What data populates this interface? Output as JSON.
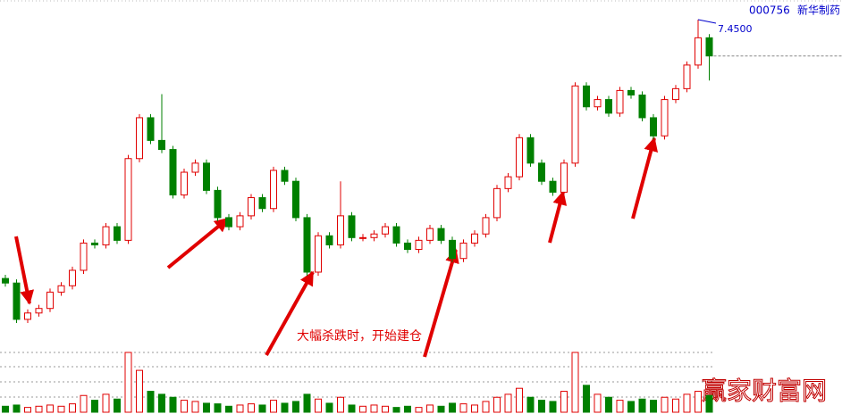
{
  "header": {
    "code": "000756",
    "name": "新华制药"
  },
  "chart_data": {
    "type": "candlestick",
    "open": [
      4.6,
      4.55,
      4.15,
      4.22,
      4.27,
      4.45,
      4.52,
      4.69,
      4.99,
      4.97,
      5.17,
      5.02,
      5.92,
      6.37,
      6.12,
      6.02,
      5.52,
      5.77,
      5.87,
      5.57,
      5.27,
      5.17,
      5.29,
      5.49,
      5.37,
      5.79,
      5.67,
      5.27,
      4.67,
      5.07,
      4.97,
      5.29,
      5.05,
      5.05,
      5.09,
      5.17,
      4.99,
      4.92,
      5.02,
      5.15,
      5.02,
      4.82,
      4.99,
      5.09,
      5.27,
      5.59,
      5.72,
      6.15,
      5.87,
      5.67,
      5.55,
      5.87,
      6.72,
      6.49,
      6.57,
      6.42,
      6.67,
      6.62,
      6.37,
      6.17,
      6.57,
      6.69,
      6.95,
      7.25
    ],
    "high": [
      4.64,
      4.59,
      4.26,
      4.31,
      4.49,
      4.56,
      4.73,
      5.03,
      5.03,
      5.21,
      5.21,
      5.96,
      6.41,
      6.41,
      6.63,
      6.06,
      5.81,
      5.91,
      5.91,
      5.61,
      5.31,
      5.33,
      5.53,
      5.53,
      5.83,
      5.83,
      5.71,
      5.31,
      5.11,
      5.11,
      5.67,
      5.33,
      5.09,
      5.13,
      5.21,
      5.21,
      5.03,
      5.06,
      5.19,
      5.19,
      5.06,
      5.03,
      5.13,
      5.31,
      5.63,
      5.76,
      6.19,
      6.19,
      5.91,
      5.71,
      5.91,
      6.76,
      6.76,
      6.61,
      6.61,
      6.71,
      6.71,
      6.66,
      6.41,
      6.61,
      6.73,
      6.99,
      7.45,
      7.29
    ],
    "low": [
      4.51,
      4.11,
      4.11,
      4.18,
      4.23,
      4.41,
      4.48,
      4.65,
      4.93,
      4.93,
      4.98,
      4.98,
      5.88,
      6.08,
      5.98,
      5.48,
      5.48,
      5.73,
      5.53,
      5.23,
      5.13,
      5.13,
      5.25,
      5.33,
      5.33,
      5.63,
      5.23,
      4.63,
      4.63,
      4.93,
      4.93,
      5.01,
      5.01,
      5.01,
      5.05,
      4.95,
      4.88,
      4.88,
      4.98,
      4.98,
      4.78,
      4.78,
      4.95,
      5.05,
      5.23,
      5.55,
      5.68,
      5.83,
      5.63,
      5.51,
      5.51,
      5.83,
      6.45,
      6.45,
      6.38,
      6.38,
      6.58,
      6.33,
      6.13,
      6.13,
      6.53,
      6.65,
      6.91,
      6.78
    ],
    "close": [
      4.55,
      4.15,
      4.22,
      4.27,
      4.45,
      4.52,
      4.69,
      4.99,
      4.97,
      5.17,
      5.02,
      5.92,
      6.37,
      6.12,
      6.02,
      5.52,
      5.77,
      5.87,
      5.57,
      5.27,
      5.17,
      5.29,
      5.49,
      5.37,
      5.79,
      5.67,
      5.27,
      4.67,
      5.07,
      4.97,
      5.29,
      5.05,
      5.05,
      5.09,
      5.17,
      4.99,
      4.92,
      5.02,
      5.15,
      5.02,
      4.82,
      4.99,
      5.09,
      5.27,
      5.59,
      5.72,
      6.15,
      5.87,
      5.67,
      5.55,
      5.87,
      6.72,
      6.49,
      6.57,
      6.42,
      6.67,
      6.62,
      6.37,
      6.17,
      6.57,
      6.69,
      6.95,
      7.25,
      7.05
    ],
    "volume": [
      10,
      12,
      8,
      10,
      12,
      10,
      14,
      28,
      20,
      30,
      22,
      100,
      70,
      35,
      30,
      25,
      20,
      18,
      15,
      14,
      10,
      12,
      14,
      12,
      20,
      15,
      18,
      30,
      22,
      15,
      25,
      12,
      10,
      12,
      10,
      8,
      10,
      8,
      12,
      10,
      15,
      14,
      12,
      18,
      25,
      30,
      40,
      25,
      20,
      18,
      35,
      100,
      45,
      30,
      25,
      20,
      18,
      22,
      20,
      25,
      22,
      30,
      35,
      28
    ],
    "max_price_label": "7.4500",
    "up_color": "#e00000",
    "down_color": "#008000",
    "annotation": "大幅杀跌时，开始建仓"
  },
  "watermark": "赢家财富网"
}
